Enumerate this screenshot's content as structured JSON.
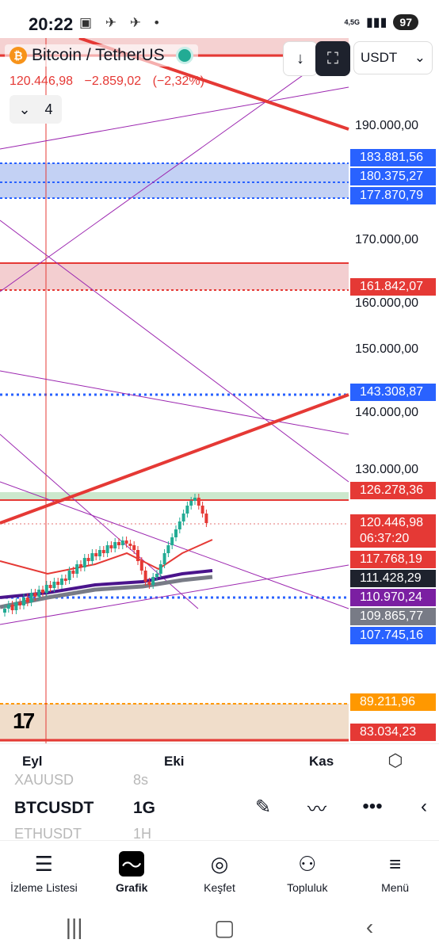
{
  "status": {
    "time": "20:22",
    "network": "4,5G",
    "battery": "97",
    "icons": "▣ ✈ ✈ •"
  },
  "header": {
    "symbol_title": "Bitcoin / TetherUS",
    "last_price": "120.446,98",
    "change": "−2.859,02",
    "change_pct": "(−2,32%)",
    "indicator_count": "4",
    "currency": "USDT",
    "down_icon": "arrow-down-icon",
    "screen_icon": "fullscreen-icon"
  },
  "price_axis": {
    "labels": [
      "190.000,00",
      "170.000,00",
      "160.000,00",
      "150.000,00",
      "140.000,00",
      "130.000,00"
    ],
    "tags": [
      {
        "value": "183.881,56",
        "color": "#2962ff"
      },
      {
        "value": "180.375,27",
        "color": "#2962ff"
      },
      {
        "value": "177.870,79",
        "color": "#2962ff"
      },
      {
        "value": "161.842,07",
        "color": "#e53935"
      },
      {
        "value": "143.308,87",
        "color": "#2962ff"
      },
      {
        "value": "126.278,36",
        "color": "#e53935"
      },
      {
        "value": "120.446,98",
        "color": "#e53935"
      },
      {
        "value": "06:37:20",
        "color": "#e53935"
      },
      {
        "value": "117.768,19",
        "color": "#e53935"
      },
      {
        "value": "111.428,29",
        "color": "#1e222d"
      },
      {
        "value": "110.970,24",
        "color": "#7b1fa2"
      },
      {
        "value": "109.865,77",
        "color": "#787b86"
      },
      {
        "value": "107.745,16",
        "color": "#2962ff"
      },
      {
        "value": "89.211,96",
        "color": "#ff9800"
      },
      {
        "value": "83.034,23",
        "color": "#e53935"
      }
    ]
  },
  "time_axis": {
    "labels": [
      "Eyl",
      "Eki",
      "Kas"
    ]
  },
  "symbol_picker": {
    "above_symbol": "XAUUSD",
    "above_interval": "8s",
    "current_symbol": "BTCUSDT",
    "current_interval": "1G",
    "below_symbol": "ETHUSDT",
    "below_interval": "1H"
  },
  "bottom_nav": [
    {
      "label": "İzleme Listesi",
      "icon": "list-icon"
    },
    {
      "label": "Grafik",
      "icon": "chart-icon"
    },
    {
      "label": "Keşfet",
      "icon": "compass-icon"
    },
    {
      "label": "Topluluk",
      "icon": "community-icon"
    },
    {
      "label": "Menü",
      "icon": "menu-icon"
    }
  ],
  "colors": {
    "down": "#e53935",
    "up": "#22ab94",
    "blue": "#2962ff",
    "purple": "#9c27b0"
  }
}
